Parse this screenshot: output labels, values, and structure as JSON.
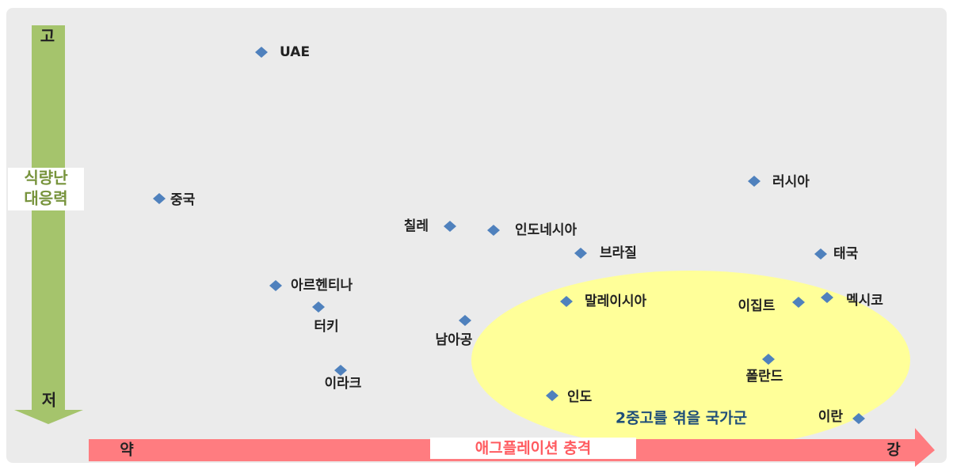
{
  "y_axis": {
    "top": "고",
    "bottom": "저",
    "label_lines": [
      "식량난",
      "대응력"
    ]
  },
  "x_axis": {
    "left": "약",
    "right": "강",
    "label": "애그플레이션 충격"
  },
  "group_label": "2중고를 겪을 국가군",
  "countries": [
    "UAE",
    "중국",
    "칠레",
    "인도네시아",
    "브라질",
    "러시아",
    "태국",
    "아르헨티나",
    "터키",
    "남아공",
    "말레이시아",
    "이집트",
    "멕시코",
    "이라크",
    "폴란드",
    "인도",
    "이란"
  ]
}
